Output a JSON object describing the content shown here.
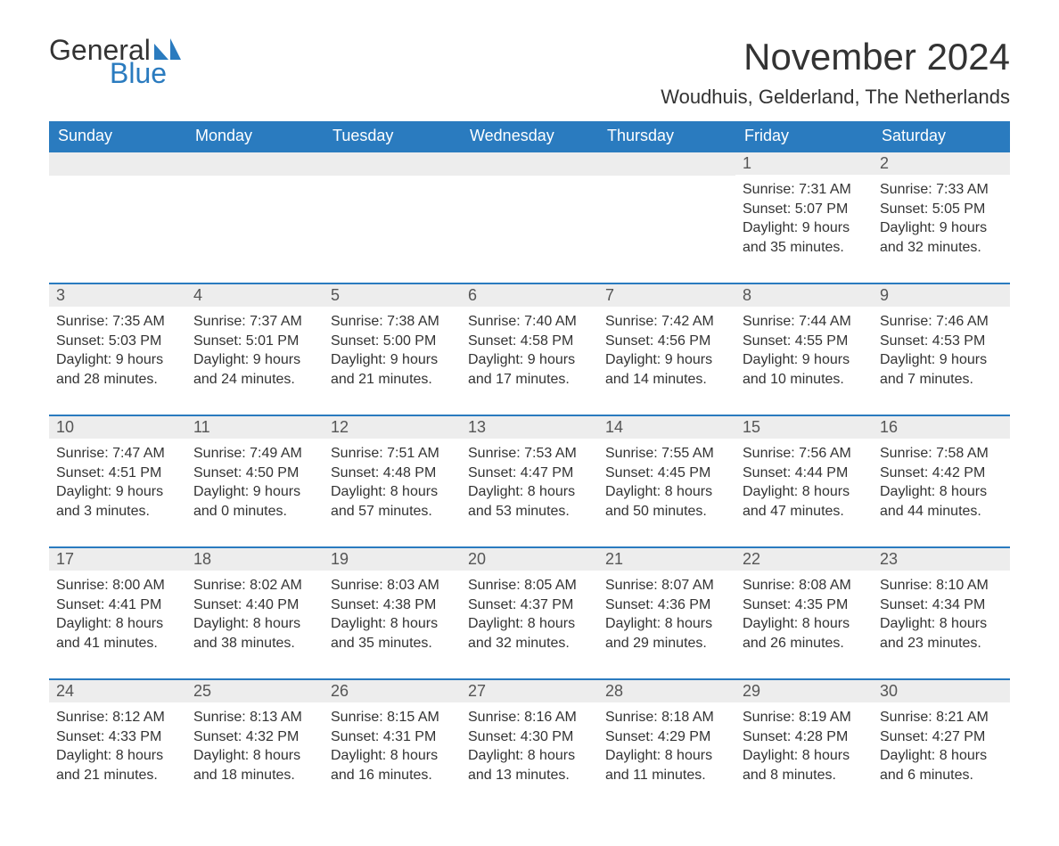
{
  "logo": {
    "word1": "General",
    "word2": "Blue",
    "text_color": "#333333",
    "blue_color": "#2a7bbf"
  },
  "title": "November 2024",
  "location": "Woudhuis, Gelderland, The Netherlands",
  "calendar": {
    "type": "table",
    "header_bg": "#2a7bbf",
    "header_text_color": "#ffffff",
    "daynum_bg": "#ededed",
    "topline_color": "#2a7bbf",
    "body_text_color": "#333333",
    "columns": [
      "Sunday",
      "Monday",
      "Tuesday",
      "Wednesday",
      "Thursday",
      "Friday",
      "Saturday"
    ],
    "labels": {
      "sunrise": "Sunrise:",
      "sunset": "Sunset:",
      "daylight": "Daylight:"
    },
    "weeks": [
      [
        null,
        null,
        null,
        null,
        null,
        {
          "n": "1",
          "sunrise": "7:31 AM",
          "sunset": "5:07 PM",
          "daylight": "9 hours and 35 minutes."
        },
        {
          "n": "2",
          "sunrise": "7:33 AM",
          "sunset": "5:05 PM",
          "daylight": "9 hours and 32 minutes."
        }
      ],
      [
        {
          "n": "3",
          "sunrise": "7:35 AM",
          "sunset": "5:03 PM",
          "daylight": "9 hours and 28 minutes."
        },
        {
          "n": "4",
          "sunrise": "7:37 AM",
          "sunset": "5:01 PM",
          "daylight": "9 hours and 24 minutes."
        },
        {
          "n": "5",
          "sunrise": "7:38 AM",
          "sunset": "5:00 PM",
          "daylight": "9 hours and 21 minutes."
        },
        {
          "n": "6",
          "sunrise": "7:40 AM",
          "sunset": "4:58 PM",
          "daylight": "9 hours and 17 minutes."
        },
        {
          "n": "7",
          "sunrise": "7:42 AM",
          "sunset": "4:56 PM",
          "daylight": "9 hours and 14 minutes."
        },
        {
          "n": "8",
          "sunrise": "7:44 AM",
          "sunset": "4:55 PM",
          "daylight": "9 hours and 10 minutes."
        },
        {
          "n": "9",
          "sunrise": "7:46 AM",
          "sunset": "4:53 PM",
          "daylight": "9 hours and 7 minutes."
        }
      ],
      [
        {
          "n": "10",
          "sunrise": "7:47 AM",
          "sunset": "4:51 PM",
          "daylight": "9 hours and 3 minutes."
        },
        {
          "n": "11",
          "sunrise": "7:49 AM",
          "sunset": "4:50 PM",
          "daylight": "9 hours and 0 minutes."
        },
        {
          "n": "12",
          "sunrise": "7:51 AM",
          "sunset": "4:48 PM",
          "daylight": "8 hours and 57 minutes."
        },
        {
          "n": "13",
          "sunrise": "7:53 AM",
          "sunset": "4:47 PM",
          "daylight": "8 hours and 53 minutes."
        },
        {
          "n": "14",
          "sunrise": "7:55 AM",
          "sunset": "4:45 PM",
          "daylight": "8 hours and 50 minutes."
        },
        {
          "n": "15",
          "sunrise": "7:56 AM",
          "sunset": "4:44 PM",
          "daylight": "8 hours and 47 minutes."
        },
        {
          "n": "16",
          "sunrise": "7:58 AM",
          "sunset": "4:42 PM",
          "daylight": "8 hours and 44 minutes."
        }
      ],
      [
        {
          "n": "17",
          "sunrise": "8:00 AM",
          "sunset": "4:41 PM",
          "daylight": "8 hours and 41 minutes."
        },
        {
          "n": "18",
          "sunrise": "8:02 AM",
          "sunset": "4:40 PM",
          "daylight": "8 hours and 38 minutes."
        },
        {
          "n": "19",
          "sunrise": "8:03 AM",
          "sunset": "4:38 PM",
          "daylight": "8 hours and 35 minutes."
        },
        {
          "n": "20",
          "sunrise": "8:05 AM",
          "sunset": "4:37 PM",
          "daylight": "8 hours and 32 minutes."
        },
        {
          "n": "21",
          "sunrise": "8:07 AM",
          "sunset": "4:36 PM",
          "daylight": "8 hours and 29 minutes."
        },
        {
          "n": "22",
          "sunrise": "8:08 AM",
          "sunset": "4:35 PM",
          "daylight": "8 hours and 26 minutes."
        },
        {
          "n": "23",
          "sunrise": "8:10 AM",
          "sunset": "4:34 PM",
          "daylight": "8 hours and 23 minutes."
        }
      ],
      [
        {
          "n": "24",
          "sunrise": "8:12 AM",
          "sunset": "4:33 PM",
          "daylight": "8 hours and 21 minutes."
        },
        {
          "n": "25",
          "sunrise": "8:13 AM",
          "sunset": "4:32 PM",
          "daylight": "8 hours and 18 minutes."
        },
        {
          "n": "26",
          "sunrise": "8:15 AM",
          "sunset": "4:31 PM",
          "daylight": "8 hours and 16 minutes."
        },
        {
          "n": "27",
          "sunrise": "8:16 AM",
          "sunset": "4:30 PM",
          "daylight": "8 hours and 13 minutes."
        },
        {
          "n": "28",
          "sunrise": "8:18 AM",
          "sunset": "4:29 PM",
          "daylight": "8 hours and 11 minutes."
        },
        {
          "n": "29",
          "sunrise": "8:19 AM",
          "sunset": "4:28 PM",
          "daylight": "8 hours and 8 minutes."
        },
        {
          "n": "30",
          "sunrise": "8:21 AM",
          "sunset": "4:27 PM",
          "daylight": "8 hours and 6 minutes."
        }
      ]
    ]
  }
}
